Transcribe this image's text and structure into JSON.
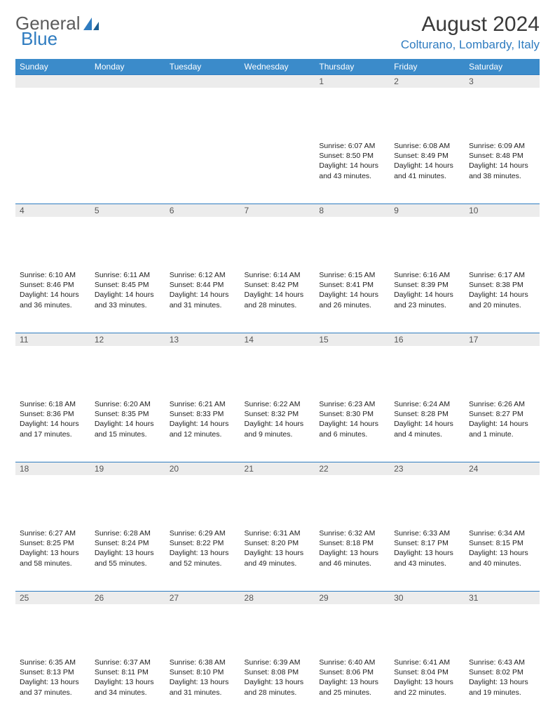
{
  "brand": {
    "part1": "General",
    "part2": "Blue"
  },
  "title": "August 2024",
  "location": "Colturano, Lombardy, Italy",
  "colors": {
    "header_bg": "#3b8bca",
    "header_text": "#ffffff",
    "daynum_bg": "#ececec",
    "accent": "#2f7cc0",
    "body_text": "#222222"
  },
  "dayHeaders": [
    "Sunday",
    "Monday",
    "Tuesday",
    "Wednesday",
    "Thursday",
    "Friday",
    "Saturday"
  ],
  "weeks": [
    [
      null,
      null,
      null,
      null,
      {
        "n": "1",
        "sr": "6:07 AM",
        "ss": "8:50 PM",
        "dl": "14 hours and 43 minutes."
      },
      {
        "n": "2",
        "sr": "6:08 AM",
        "ss": "8:49 PM",
        "dl": "14 hours and 41 minutes."
      },
      {
        "n": "3",
        "sr": "6:09 AM",
        "ss": "8:48 PM",
        "dl": "14 hours and 38 minutes."
      }
    ],
    [
      {
        "n": "4",
        "sr": "6:10 AM",
        "ss": "8:46 PM",
        "dl": "14 hours and 36 minutes."
      },
      {
        "n": "5",
        "sr": "6:11 AM",
        "ss": "8:45 PM",
        "dl": "14 hours and 33 minutes."
      },
      {
        "n": "6",
        "sr": "6:12 AM",
        "ss": "8:44 PM",
        "dl": "14 hours and 31 minutes."
      },
      {
        "n": "7",
        "sr": "6:14 AM",
        "ss": "8:42 PM",
        "dl": "14 hours and 28 minutes."
      },
      {
        "n": "8",
        "sr": "6:15 AM",
        "ss": "8:41 PM",
        "dl": "14 hours and 26 minutes."
      },
      {
        "n": "9",
        "sr": "6:16 AM",
        "ss": "8:39 PM",
        "dl": "14 hours and 23 minutes."
      },
      {
        "n": "10",
        "sr": "6:17 AM",
        "ss": "8:38 PM",
        "dl": "14 hours and 20 minutes."
      }
    ],
    [
      {
        "n": "11",
        "sr": "6:18 AM",
        "ss": "8:36 PM",
        "dl": "14 hours and 17 minutes."
      },
      {
        "n": "12",
        "sr": "6:20 AM",
        "ss": "8:35 PM",
        "dl": "14 hours and 15 minutes."
      },
      {
        "n": "13",
        "sr": "6:21 AM",
        "ss": "8:33 PM",
        "dl": "14 hours and 12 minutes."
      },
      {
        "n": "14",
        "sr": "6:22 AM",
        "ss": "8:32 PM",
        "dl": "14 hours and 9 minutes."
      },
      {
        "n": "15",
        "sr": "6:23 AM",
        "ss": "8:30 PM",
        "dl": "14 hours and 6 minutes."
      },
      {
        "n": "16",
        "sr": "6:24 AM",
        "ss": "8:28 PM",
        "dl": "14 hours and 4 minutes."
      },
      {
        "n": "17",
        "sr": "6:26 AM",
        "ss": "8:27 PM",
        "dl": "14 hours and 1 minute."
      }
    ],
    [
      {
        "n": "18",
        "sr": "6:27 AM",
        "ss": "8:25 PM",
        "dl": "13 hours and 58 minutes."
      },
      {
        "n": "19",
        "sr": "6:28 AM",
        "ss": "8:24 PM",
        "dl": "13 hours and 55 minutes."
      },
      {
        "n": "20",
        "sr": "6:29 AM",
        "ss": "8:22 PM",
        "dl": "13 hours and 52 minutes."
      },
      {
        "n": "21",
        "sr": "6:31 AM",
        "ss": "8:20 PM",
        "dl": "13 hours and 49 minutes."
      },
      {
        "n": "22",
        "sr": "6:32 AM",
        "ss": "8:18 PM",
        "dl": "13 hours and 46 minutes."
      },
      {
        "n": "23",
        "sr": "6:33 AM",
        "ss": "8:17 PM",
        "dl": "13 hours and 43 minutes."
      },
      {
        "n": "24",
        "sr": "6:34 AM",
        "ss": "8:15 PM",
        "dl": "13 hours and 40 minutes."
      }
    ],
    [
      {
        "n": "25",
        "sr": "6:35 AM",
        "ss": "8:13 PM",
        "dl": "13 hours and 37 minutes."
      },
      {
        "n": "26",
        "sr": "6:37 AM",
        "ss": "8:11 PM",
        "dl": "13 hours and 34 minutes."
      },
      {
        "n": "27",
        "sr": "6:38 AM",
        "ss": "8:10 PM",
        "dl": "13 hours and 31 minutes."
      },
      {
        "n": "28",
        "sr": "6:39 AM",
        "ss": "8:08 PM",
        "dl": "13 hours and 28 minutes."
      },
      {
        "n": "29",
        "sr": "6:40 AM",
        "ss": "8:06 PM",
        "dl": "13 hours and 25 minutes."
      },
      {
        "n": "30",
        "sr": "6:41 AM",
        "ss": "8:04 PM",
        "dl": "13 hours and 22 minutes."
      },
      {
        "n": "31",
        "sr": "6:43 AM",
        "ss": "8:02 PM",
        "dl": "13 hours and 19 minutes."
      }
    ]
  ],
  "labels": {
    "sunrise": "Sunrise:",
    "sunset": "Sunset:",
    "daylight": "Daylight:"
  }
}
